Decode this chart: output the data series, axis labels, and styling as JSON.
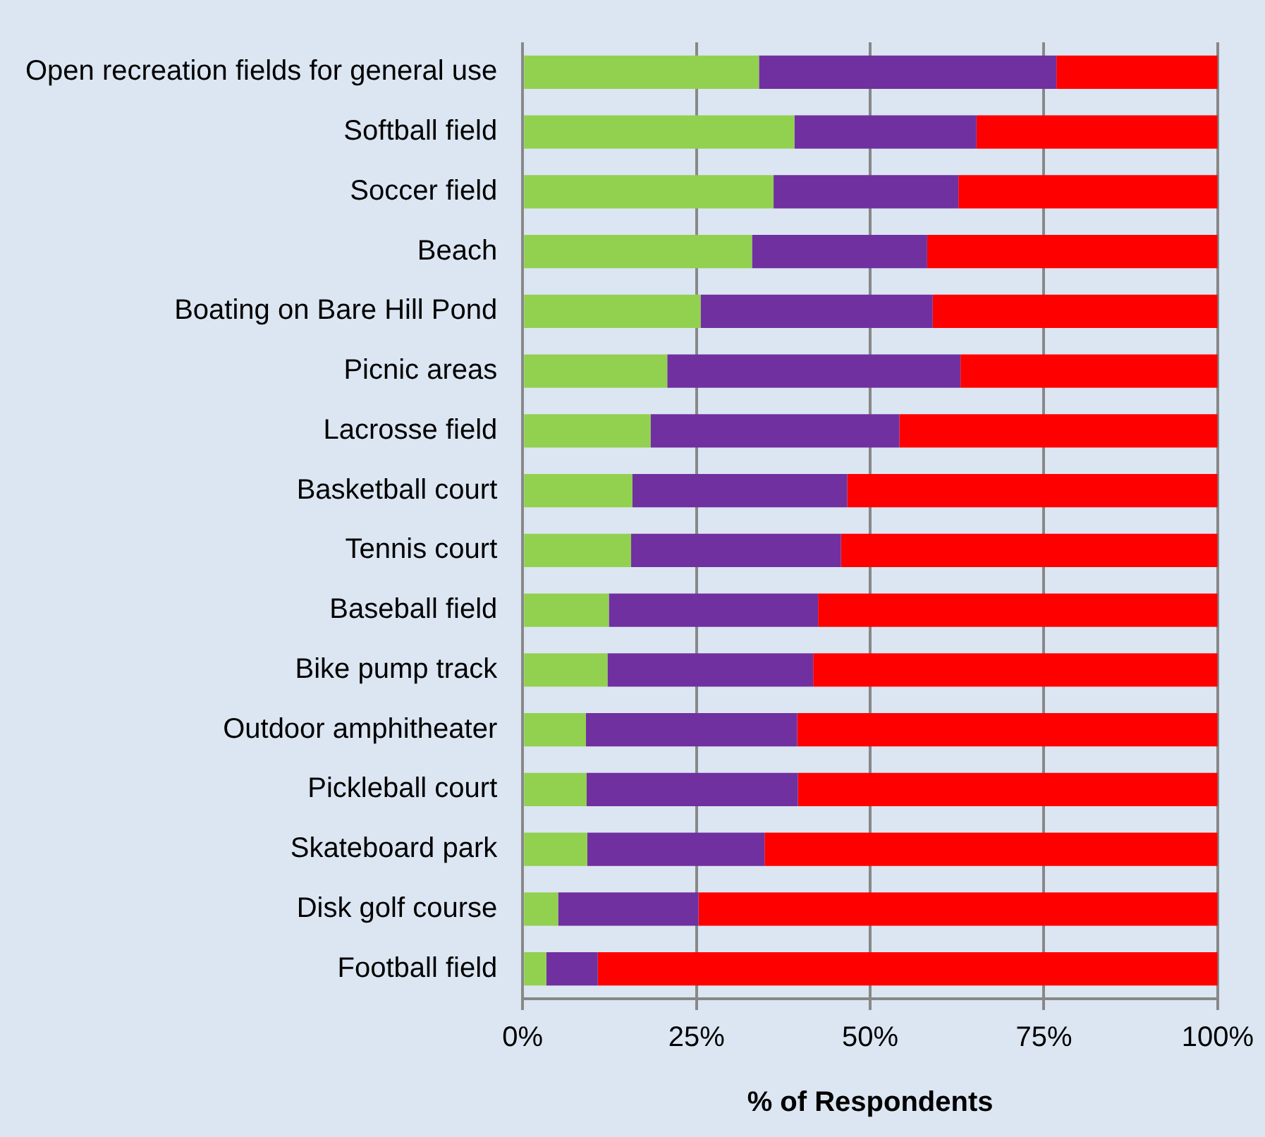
{
  "chart_data": {
    "type": "bar",
    "orientation": "horizontal",
    "stacked": true,
    "categories": [
      "Open recreation fields for general use",
      "Softball field",
      "Soccer field",
      "Beach",
      "Boating on Bare Hill Pond",
      "Picnic areas",
      "Lacrosse field",
      "Basketball court",
      "Tennis court",
      "Baseball field",
      "Bike pump track",
      "Outdoor amphitheater",
      "Pickleball court",
      "Skateboard park",
      "Disk golf course",
      "Football field"
    ],
    "series": [
      {
        "color": "#92d050",
        "values": [
          34,
          39.1,
          36.1,
          33,
          25.6,
          20.8,
          18.4,
          15.8,
          15.6,
          12.4,
          12.2,
          9.1,
          9.2,
          9.3,
          5.1,
          3.4
        ]
      },
      {
        "color": "#7030a0",
        "values": [
          42.8,
          26.2,
          26.6,
          25.2,
          33.4,
          42.2,
          35.8,
          30.9,
          30.2,
          30.1,
          29.6,
          30.4,
          30.4,
          25.5,
          20.2,
          7.4
        ]
      },
      {
        "color": "#ff0000",
        "values": [
          23.2,
          34.7,
          37.3,
          41.8,
          41,
          37,
          45.8,
          53.3,
          54.2,
          57.5,
          58.2,
          60.5,
          60.4,
          65.2,
          74.7,
          89.2
        ]
      }
    ],
    "xlim": [
      0,
      100
    ],
    "xticks": [
      {
        "value": 0,
        "label": "0%"
      },
      {
        "value": 25,
        "label": "25%"
      },
      {
        "value": 50,
        "label": "50%"
      },
      {
        "value": 75,
        "label": "75%"
      },
      {
        "value": 100,
        "label": "100%"
      }
    ],
    "xlabel": "% of Respondents",
    "grid": "x",
    "legend": false
  }
}
